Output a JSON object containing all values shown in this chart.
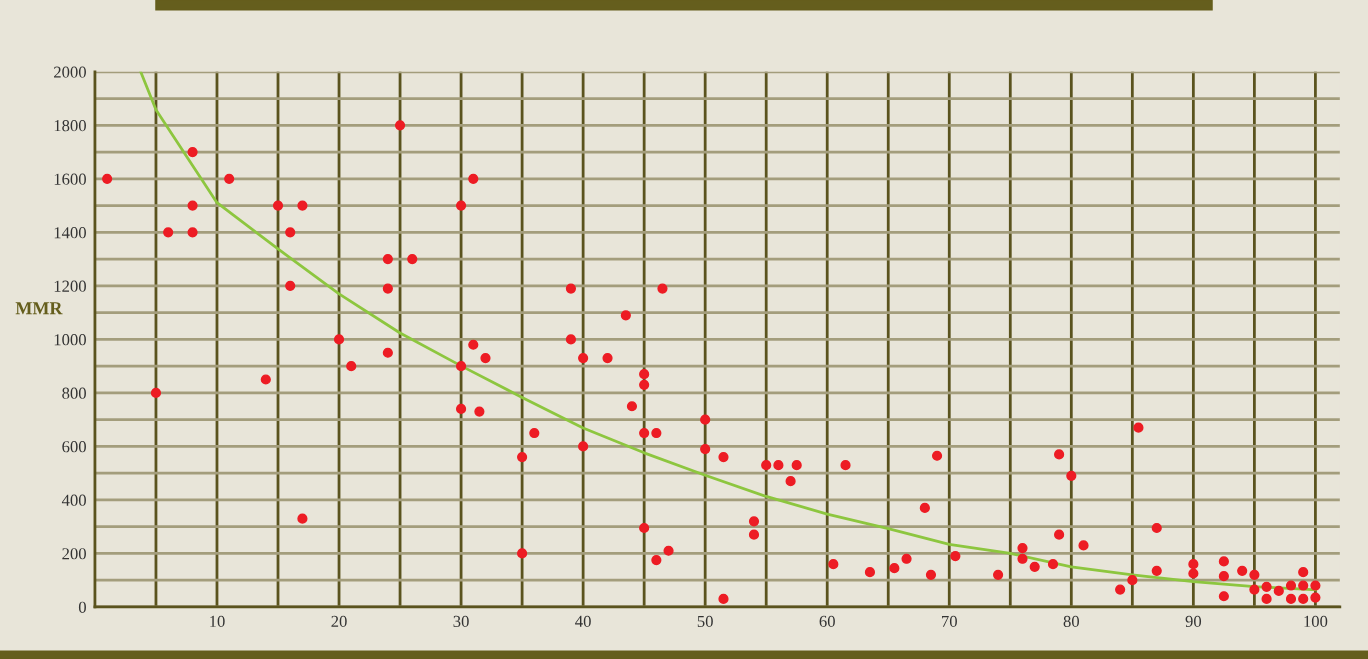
{
  "chart_data": {
    "type": "scatter",
    "ylabel": "MMR",
    "xlim": [
      0,
      102
    ],
    "ylim": [
      0,
      2000
    ],
    "xticks": [
      {
        "value": 5,
        "label": null
      },
      10,
      {
        "value": 15,
        "label": null
      },
      20,
      {
        "value": 25,
        "label": null
      },
      30,
      {
        "value": 35,
        "label": null
      },
      40,
      {
        "value": 45,
        "label": null
      },
      50,
      {
        "value": 55,
        "label": null
      },
      60,
      {
        "value": 65,
        "label": null
      },
      70,
      {
        "value": 75,
        "label": null
      },
      80,
      {
        "value": 85,
        "label": null
      },
      90,
      {
        "value": 95,
        "label": null
      },
      100
    ],
    "yticks": [
      0,
      {
        "value": 100,
        "label": null
      },
      200,
      {
        "value": 300,
        "label": null
      },
      400,
      {
        "value": 500,
        "label": null
      },
      600,
      {
        "value": 700,
        "label": null
      },
      800,
      {
        "value": 900,
        "label": null
      },
      1000,
      {
        "value": 1100,
        "label": null
      },
      1200,
      {
        "value": 1300,
        "label": null
      },
      1400,
      {
        "value": 1500,
        "label": null
      },
      1600,
      {
        "value": 1700,
        "label": null
      },
      1800,
      {
        "value": 1900,
        "label": null
      },
      2000
    ],
    "grid": true,
    "marker": "circle",
    "series": [
      {
        "color": "#ed1c24",
        "x": [
          1,
          5,
          6,
          8,
          8,
          8,
          11,
          14,
          15,
          16,
          16,
          17,
          17,
          20,
          21,
          24,
          24,
          24,
          25,
          26,
          30,
          31,
          30,
          30,
          31,
          31.5,
          32,
          35,
          35,
          36,
          39,
          39,
          40,
          40,
          42,
          43.5,
          44,
          45,
          45,
          45,
          45,
          46,
          46.5,
          46,
          47,
          50,
          50,
          51.5,
          51.5,
          54,
          54,
          55,
          56,
          57,
          57.5,
          60.5,
          61.5,
          63.5,
          65.5,
          66.5,
          68,
          68.5,
          69,
          70.5,
          74,
          76,
          76,
          77,
          78.5,
          79,
          79,
          80,
          81,
          84,
          85,
          85.5,
          87,
          87,
          90,
          90,
          92.5,
          92.5,
          92.5,
          94,
          95,
          95,
          96,
          96,
          97,
          98,
          98,
          99,
          99,
          99,
          100,
          100
        ],
        "values": [
          1600,
          800,
          1400,
          1700,
          1500,
          1400,
          1600,
          850,
          1500,
          1400,
          1200,
          1500,
          330,
          1000,
          900,
          1300,
          1190,
          950,
          1800,
          1300,
          1500,
          1600,
          900,
          740,
          980,
          730,
          930,
          560,
          200,
          650,
          1190,
          1000,
          930,
          600,
          930,
          1090,
          750,
          870,
          830,
          650,
          295,
          650,
          1190,
          175,
          210,
          700,
          590,
          30,
          560,
          270,
          320,
          530,
          530,
          470,
          530,
          160,
          530,
          130,
          145,
          180,
          370,
          120,
          565,
          190,
          120,
          220,
          180,
          150,
          160,
          270,
          570,
          490,
          230,
          65,
          100,
          670,
          295,
          135,
          160,
          125,
          170,
          115,
          40,
          135,
          120,
          65,
          30,
          75,
          60,
          80,
          30,
          130,
          80,
          30,
          80,
          35
        ]
      },
      {
        "type": "line",
        "color": "#8dc63f",
        "marker": "none",
        "x": [
          3.75,
          5,
          10,
          15,
          20,
          25,
          30,
          35,
          40,
          45,
          50,
          55,
          60,
          65,
          70,
          75,
          80,
          85,
          90,
          95,
          100
        ],
        "values": [
          2000,
          1858,
          1511,
          1338,
          1170,
          1024,
          901,
          783,
          669,
          576,
          492,
          413,
          347,
          293,
          234,
          200,
          150,
          120,
          95,
          76,
          64
        ]
      }
    ]
  }
}
